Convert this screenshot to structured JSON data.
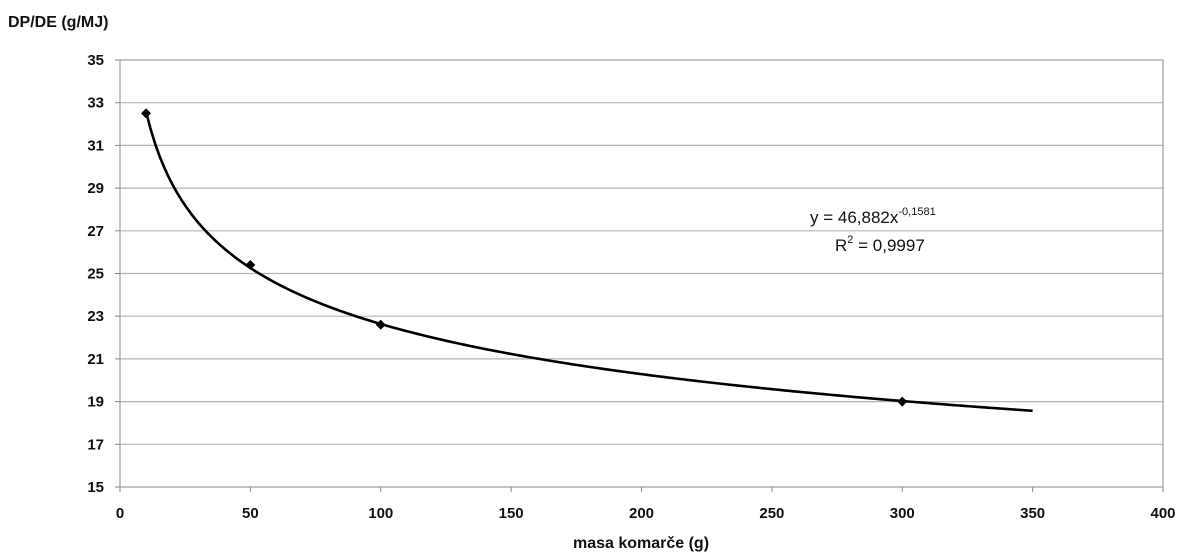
{
  "chart_data": {
    "type": "scatter",
    "ylabel": "DP/DE (g/MJ)",
    "xlabel": "masa komarče (g)",
    "xlim": [
      0,
      400
    ],
    "ylim": [
      15,
      35
    ],
    "x_ticks": [
      0,
      50,
      100,
      150,
      200,
      250,
      300,
      350,
      400
    ],
    "y_ticks": [
      15,
      17,
      19,
      21,
      23,
      25,
      27,
      29,
      31,
      33,
      35
    ],
    "grid": "horizontal",
    "points": [
      {
        "x": 10,
        "y": 32.5
      },
      {
        "x": 50,
        "y": 25.4
      },
      {
        "x": 100,
        "y": 22.6
      },
      {
        "x": 300,
        "y": 19.0
      }
    ],
    "trendline": {
      "type": "power",
      "a": 46.882,
      "b": -0.1581,
      "x_range": [
        10,
        350
      ]
    },
    "annotation": {
      "equation_prefix": "y = 46,882x",
      "equation_exponent": "-0,1581",
      "r2_prefix": "R",
      "r2_exponent": "2",
      "r2_value": " = 0,9997"
    }
  }
}
